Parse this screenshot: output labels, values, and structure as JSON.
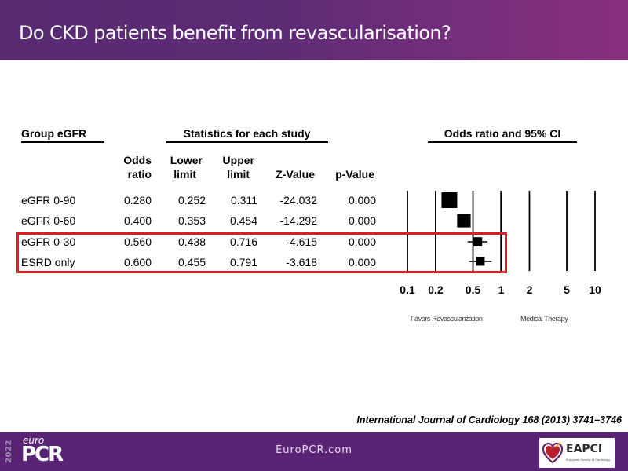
{
  "slide": {
    "title": "Do CKD patients benefit from revascularisation?",
    "citation": "International Journal of Cardiology 168 (2013) 3741–3746"
  },
  "footer": {
    "year": "2022",
    "brand_prefix": "euro",
    "brand": "PCR",
    "url": "EuroPCR.com",
    "partner_logo": "EAPCI",
    "partner_sub": "European Society of Cardiology"
  },
  "colors": {
    "header_start": "#572a72",
    "header_end": "#8a2f7e",
    "footer_bg": "#5a2474",
    "highlight": "#e01b22"
  },
  "chart_data": {
    "type": "table",
    "subtype": "forest-plot",
    "group_header": "Group eGFR",
    "stats_header": "Statistics for each study",
    "plot_header": "Odds ratio and 95% CI",
    "columns": [
      "Odds ratio",
      "Lower limit",
      "Upper limit",
      "Z-Value",
      "p-Value"
    ],
    "column_headers": [
      {
        "line1": "Odds",
        "line2": "ratio"
      },
      {
        "line1": "Lower",
        "line2": "limit"
      },
      {
        "line1": "Upper",
        "line2": "limit"
      },
      {
        "line1": "",
        "line2": "Z-Value"
      },
      {
        "line1": "",
        "line2": "p-Value"
      }
    ],
    "rows": [
      {
        "group": "eGFR 0-90",
        "odds_ratio": "0.280",
        "lower": "0.252",
        "upper": "0.311",
        "z": "-24.032",
        "p": "0.000",
        "or_value": 0.28,
        "lo_value": 0.252,
        "hi_value": 0.311,
        "weight": 1.0,
        "highlighted": false
      },
      {
        "group": "eGFR 0-60",
        "odds_ratio": "0.400",
        "lower": "0.353",
        "upper": "0.454",
        "z": "-14.292",
        "p": "0.000",
        "or_value": 0.4,
        "lo_value": 0.353,
        "hi_value": 0.454,
        "weight": 0.8,
        "highlighted": false
      },
      {
        "group": "eGFR 0-30",
        "odds_ratio": "0.560",
        "lower": "0.438",
        "upper": "0.716",
        "z": "-4.615",
        "p": "0.000",
        "or_value": 0.56,
        "lo_value": 0.438,
        "hi_value": 0.716,
        "weight": 0.4,
        "highlighted": true
      },
      {
        "group": "ESRD only",
        "odds_ratio": "0.600",
        "lower": "0.455",
        "upper": "0.791",
        "z": "-3.618",
        "p": "0.000",
        "or_value": 0.6,
        "lo_value": 0.455,
        "hi_value": 0.791,
        "weight": 0.35,
        "highlighted": true
      }
    ],
    "x_axis": {
      "scale": "log",
      "range": [
        0.1,
        10
      ],
      "ticks": [
        0.1,
        0.2,
        0.5,
        1,
        2,
        5,
        10
      ],
      "tick_labels": [
        "0.1",
        "0.2",
        "0.5",
        "1",
        "2",
        "5",
        "10"
      ],
      "left_label": "Favors Revascularization",
      "right_label": "Medical Therapy"
    },
    "gridlines": "vertical at ticks"
  }
}
